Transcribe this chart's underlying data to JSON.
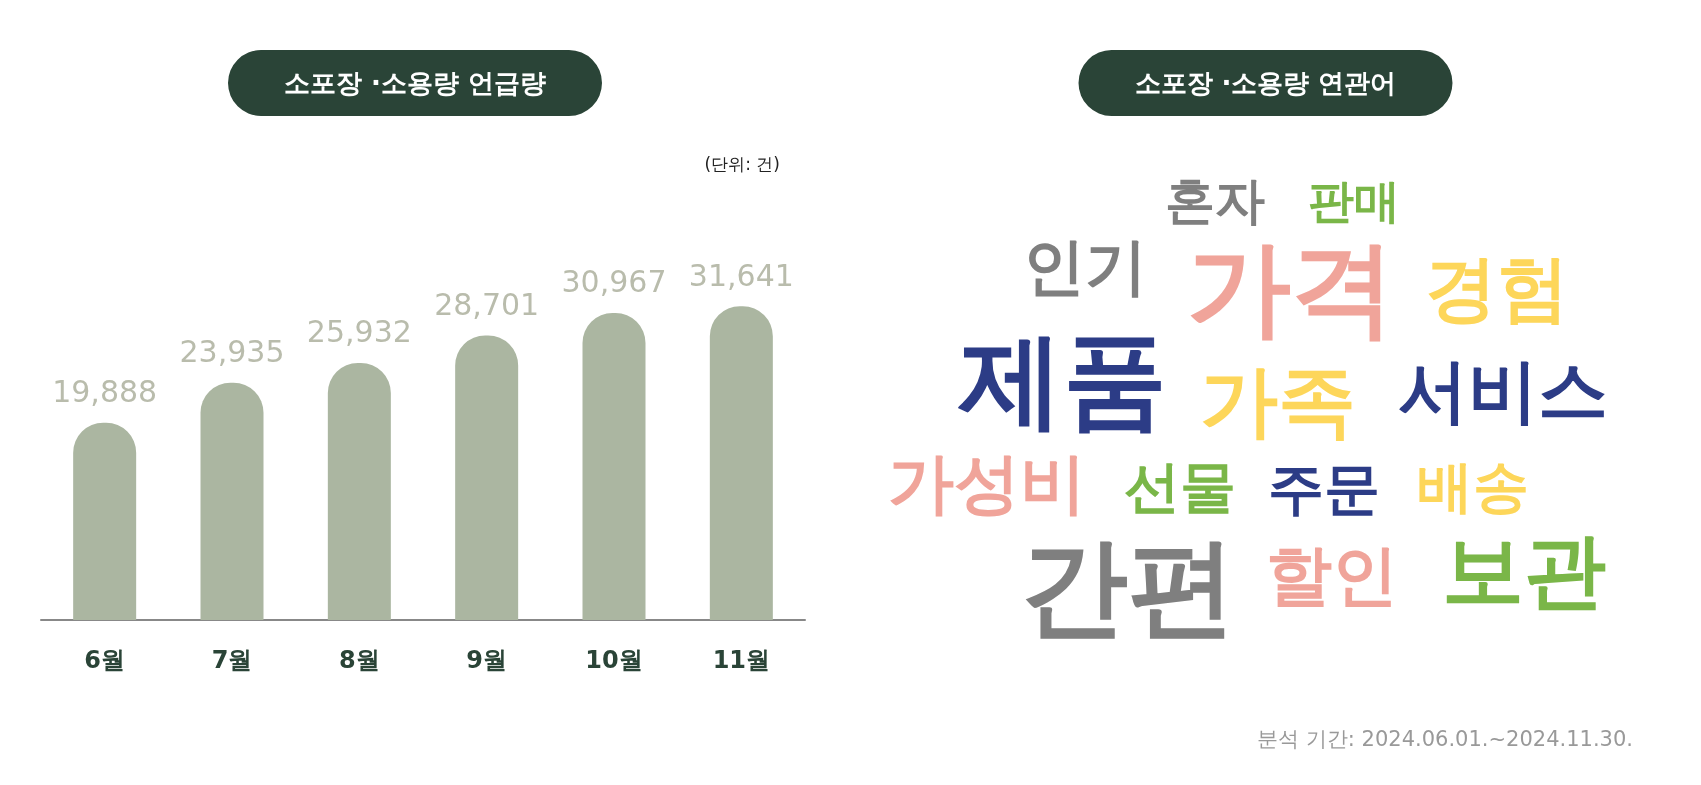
{
  "chart_data": [
    {
      "type": "bar",
      "title": "소포장 ·소용량 언급량",
      "categories": [
        "6월",
        "7월",
        "8월",
        "9월",
        "10월",
        "11월"
      ],
      "values": [
        19888,
        23935,
        25932,
        28701,
        30967,
        31641
      ],
      "color": "#abb6a1",
      "value_labels": [
        "19,888",
        "23,935",
        "25,932",
        "28,701",
        "30,967",
        "31,641"
      ],
      "annotations": [
        "(단위: 건)"
      ]
    },
    {
      "type": "other",
      "title": "소포장 ·소용량 연관어",
      "categories": [
        "혼자",
        "판매",
        "인기",
        "가격",
        "경험",
        "제품",
        "가족",
        "서비스",
        "가성비",
        "선물",
        "주문",
        "배송",
        "간편",
        "할인",
        "보관"
      ],
      "colors": [
        "#7f7f7f",
        "#7ab648",
        "#7f7f7f",
        "#f0a49a",
        "#fdd65a",
        "#2c3c86",
        "#fdd65a",
        "#2c3c86",
        "#f0a49a",
        "#7ab648",
        "#2c3c86",
        "#fdd65a",
        "#7f7f7f",
        "#f0a49a",
        "#7ab648"
      ],
      "annotations": [
        "분석 기간: 2024.06.01.~2024.11.30."
      ]
    }
  ]
}
